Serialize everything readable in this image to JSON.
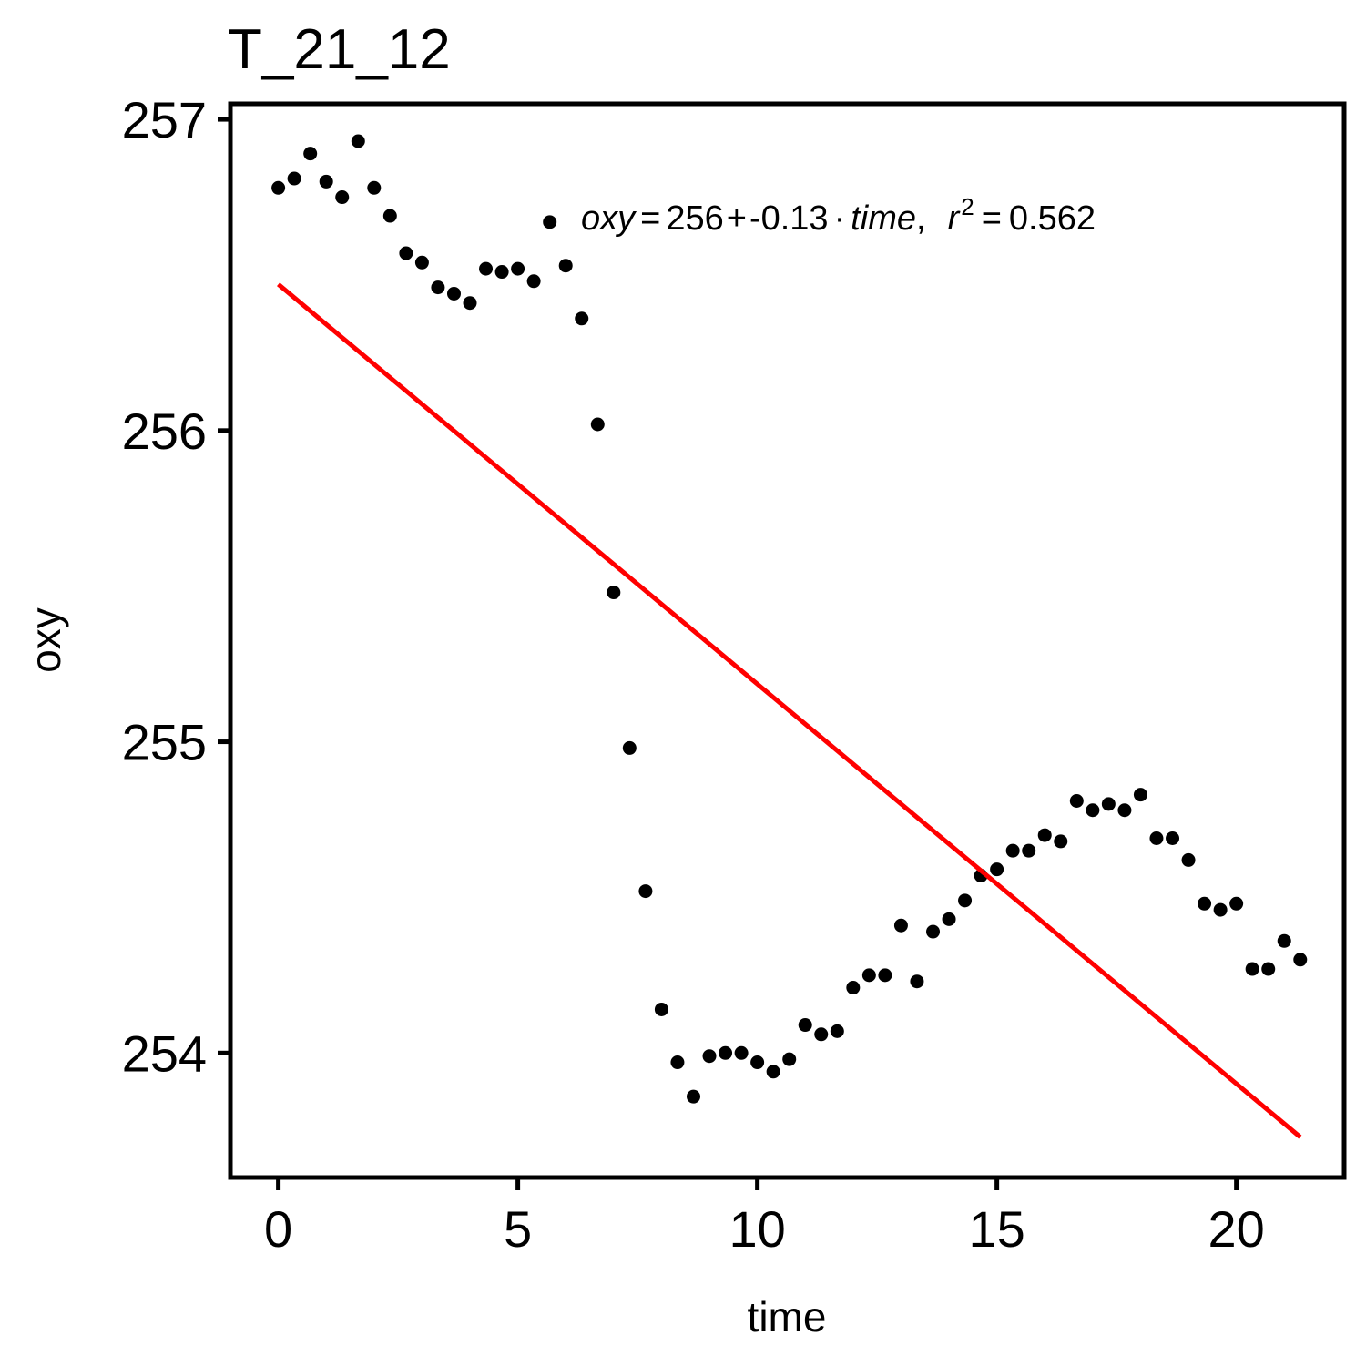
{
  "chart_data": {
    "type": "scatter",
    "title": "T_21_12",
    "xlabel": "time",
    "ylabel": "oxy",
    "xlim": [
      -1.0,
      22.25
    ],
    "ylim": [
      253.6,
      257.05
    ],
    "x_ticks": [
      0,
      5,
      10,
      15,
      20
    ],
    "y_ticks": [
      254,
      255,
      256,
      257
    ],
    "grid": false,
    "annotation": {
      "var_y": "oxy",
      "intercept": "256",
      "plus": "+",
      "slope": "-0.13",
      "dot": "·",
      "var_x": "time",
      "comma": ",",
      "r": "r",
      "sup": "2",
      "eqsign": "=",
      "r2": "0.562"
    },
    "colors": {
      "points": "#000000",
      "fit": "#ff0000",
      "frame": "#000000"
    },
    "fit_line": {
      "x": [
        0,
        21.333
      ],
      "y": [
        256.47,
        253.73
      ]
    },
    "points": {
      "x": [
        0,
        0.333,
        0.667,
        1,
        1.333,
        1.667,
        2,
        2.333,
        2.667,
        3,
        3.333,
        3.667,
        4,
        4.333,
        4.667,
        5,
        5.333,
        5.667,
        6,
        6.333,
        6.667,
        7,
        7.333,
        7.667,
        8,
        8.333,
        8.667,
        9,
        9.333,
        9.667,
        10,
        10.333,
        10.667,
        11,
        11.333,
        11.667,
        12,
        12.333,
        12.667,
        13,
        13.333,
        13.667,
        14,
        14.333,
        14.667,
        15,
        15.333,
        15.667,
        16,
        16.333,
        16.667,
        17,
        17.333,
        17.667,
        18,
        18.333,
        18.667,
        19,
        19.333,
        19.667,
        20,
        20.333,
        20.667,
        21,
        21.333
      ],
      "y": [
        256.78,
        256.81,
        256.89,
        256.8,
        256.75,
        256.93,
        256.78,
        256.69,
        256.57,
        256.54,
        256.46,
        256.44,
        256.41,
        256.52,
        256.51,
        256.52,
        256.48,
        256.67,
        256.53,
        256.36,
        256.02,
        255.48,
        254.98,
        254.52,
        254.14,
        253.97,
        253.86,
        253.99,
        254.0,
        254.0,
        253.97,
        253.94,
        253.98,
        254.09,
        254.06,
        254.07,
        254.21,
        254.25,
        254.25,
        254.41,
        254.23,
        254.39,
        254.43,
        254.49,
        254.57,
        254.59,
        254.65,
        254.65,
        254.7,
        254.68,
        254.81,
        254.78,
        254.8,
        254.78,
        254.83,
        254.69,
        254.69,
        254.62,
        254.48,
        254.46,
        254.48,
        254.27,
        254.27,
        254.36,
        254.3
      ]
    }
  }
}
